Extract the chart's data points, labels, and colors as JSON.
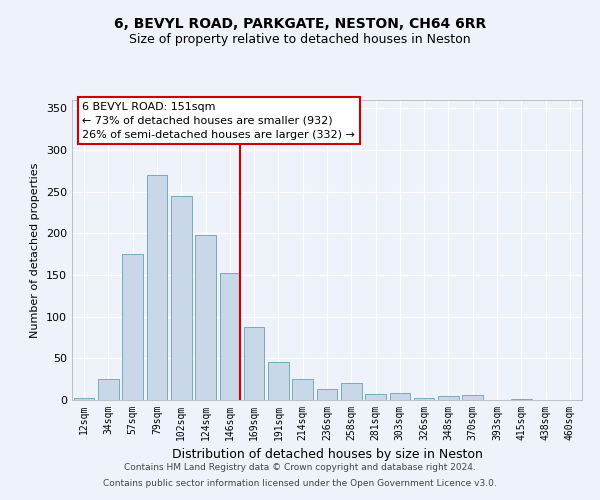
{
  "title": "6, BEVYL ROAD, PARKGATE, NESTON, CH64 6RR",
  "subtitle": "Size of property relative to detached houses in Neston",
  "xlabel": "Distribution of detached houses by size in Neston",
  "ylabel": "Number of detached properties",
  "categories": [
    "12sqm",
    "34sqm",
    "57sqm",
    "79sqm",
    "102sqm",
    "124sqm",
    "146sqm",
    "169sqm",
    "191sqm",
    "214sqm",
    "236sqm",
    "258sqm",
    "281sqm",
    "303sqm",
    "326sqm",
    "348sqm",
    "370sqm",
    "393sqm",
    "415sqm",
    "438sqm",
    "460sqm"
  ],
  "values": [
    2,
    25,
    175,
    270,
    245,
    198,
    153,
    88,
    46,
    25,
    13,
    20,
    7,
    8,
    3,
    5,
    6,
    0,
    1,
    0,
    0
  ],
  "bar_color": "#c8d8e8",
  "bar_edge_color": "#7aaabb",
  "vline_x_index": 6,
  "vline_color": "#cc0000",
  "annotation_line1": "6 BEVYL ROAD: 151sqm",
  "annotation_line2": "← 73% of detached houses are smaller (932)",
  "annotation_line3": "26% of semi-detached houses are larger (332) →",
  "annotation_box_color": "#ffffff",
  "annotation_box_edge_color": "#cc0000",
  "footnote1": "Contains HM Land Registry data © Crown copyright and database right 2024.",
  "footnote2": "Contains public sector information licensed under the Open Government Licence v3.0.",
  "background_color": "#eef2fa",
  "plot_background": "#eef2fa",
  "ylim": [
    0,
    360
  ],
  "yticks": [
    0,
    50,
    100,
    150,
    200,
    250,
    300,
    350
  ],
  "title_fontsize": 10,
  "subtitle_fontsize": 9,
  "ylabel_fontsize": 8,
  "xlabel_fontsize": 9,
  "tick_fontsize": 7,
  "annotation_fontsize": 8,
  "footnote_fontsize": 6.5
}
